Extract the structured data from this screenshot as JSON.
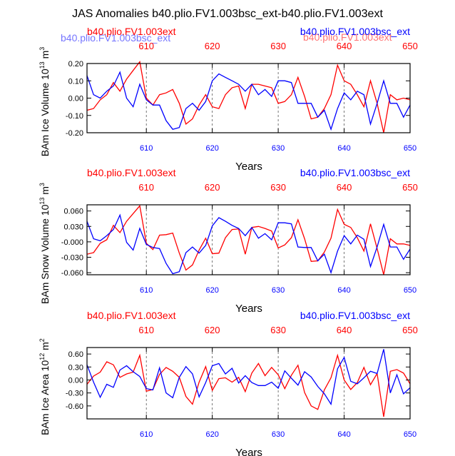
{
  "title": "JAS Anomalies b40.plio.FV1.003bsc_ext-b40.plio.FV1.003ext",
  "colors": {
    "red_series": "#ff0000",
    "blue_series": "#0000ff",
    "frame": "#000000",
    "refline": "#555555"
  },
  "chart_data": [
    {
      "type": "line",
      "ylabel_main": "BAm Ice Volume 10",
      "ylabel_exp": "13",
      "ylabel_unit": " m",
      "ylabel_unit_exp": "3",
      "xlabel": "Years",
      "legend_red": "b40.plio.FV1.003ext",
      "legend_blue": "b40.plio.FV1.003bsc_ext",
      "ghost_red": "b40.plio.FV1.003ext",
      "ghost_blue": "b40.plio.FV1.003bsc_ext",
      "xlim": [
        601,
        650
      ],
      "ylim": [
        -0.2,
        0.2
      ],
      "yticks": [
        0.2,
        0.1,
        0.0,
        -0.1,
        -0.2
      ],
      "ytick_labels": [
        "0.20",
        "0.10",
        "0.00",
        "-0.10",
        "-0.20"
      ],
      "xticks": [
        610,
        620,
        630,
        640,
        650
      ],
      "xtick_labels": [
        "610",
        "620",
        "630",
        "640",
        "650"
      ],
      "vlines": [
        610,
        620,
        630,
        640
      ],
      "x": [
        601,
        602,
        603,
        604,
        605,
        606,
        607,
        608,
        609,
        610,
        611,
        612,
        613,
        614,
        615,
        616,
        617,
        618,
        619,
        620,
        621,
        622,
        623,
        624,
        625,
        626,
        627,
        628,
        629,
        630,
        631,
        632,
        633,
        634,
        635,
        636,
        637,
        638,
        639,
        640,
        641,
        642,
        643,
        644,
        645,
        646,
        647,
        648,
        649,
        650
      ],
      "series": [
        {
          "name": "b40.plio.FV1.003ext",
          "color": "#ff0000",
          "values": [
            -0.07,
            -0.06,
            -0.01,
            0.02,
            0.09,
            0.04,
            0.11,
            0.16,
            0.21,
            0.0,
            -0.04,
            0.02,
            0.03,
            0.05,
            -0.03,
            -0.15,
            -0.12,
            -0.04,
            0.02,
            -0.05,
            -0.06,
            0.02,
            0.06,
            0.07,
            -0.06,
            0.08,
            0.08,
            0.07,
            0.06,
            -0.03,
            -0.02,
            0.02,
            0.12,
            0.01,
            -0.12,
            -0.11,
            -0.06,
            0.02,
            0.19,
            0.1,
            0.08,
            0.02,
            -0.05,
            0.1,
            -0.03,
            -0.2,
            0.02,
            -0.01,
            0.0,
            -0.01
          ]
        },
        {
          "name": "b40.plio.FV1.003bsc_ext",
          "color": "#0000ff",
          "values": [
            0.13,
            0.02,
            0.0,
            0.04,
            0.07,
            0.15,
            0.0,
            -0.05,
            0.08,
            -0.01,
            -0.04,
            -0.04,
            -0.13,
            -0.18,
            -0.17,
            -0.06,
            -0.03,
            -0.07,
            -0.02,
            0.1,
            0.14,
            0.12,
            0.1,
            0.08,
            0.04,
            0.08,
            0.02,
            0.05,
            0.01,
            0.1,
            0.1,
            0.09,
            -0.03,
            -0.03,
            -0.03,
            -0.11,
            -0.07,
            -0.18,
            -0.06,
            0.03,
            -0.01,
            0.04,
            0.02,
            -0.15,
            -0.03,
            0.1,
            -0.03,
            -0.03,
            -0.11,
            -0.04
          ]
        }
      ]
    },
    {
      "type": "line",
      "ylabel_main": "BAm Snow Volume 10",
      "ylabel_exp": "13",
      "ylabel_unit": " m",
      "ylabel_unit_exp": "3",
      "xlabel": "Years",
      "legend_red": "b40.plio.FV1.003ext",
      "legend_blue": "b40.plio.FV1.003bsc_ext",
      "xlim": [
        601,
        650
      ],
      "ylim": [
        -0.064,
        0.072
      ],
      "yticks": [
        0.06,
        0.03,
        0.0,
        -0.03,
        -0.06
      ],
      "ytick_labels": [
        "0.060",
        "0.030",
        "-0.000",
        "-0.030",
        "-0.060"
      ],
      "xticks": [
        610,
        620,
        630,
        640,
        650
      ],
      "xtick_labels": [
        "610",
        "620",
        "630",
        "640",
        "650"
      ],
      "vlines": [
        610,
        620,
        630,
        640
      ],
      "x": [
        601,
        602,
        603,
        604,
        605,
        606,
        607,
        608,
        609,
        610,
        611,
        612,
        613,
        614,
        615,
        616,
        617,
        618,
        619,
        620,
        621,
        622,
        623,
        624,
        625,
        626,
        627,
        628,
        629,
        630,
        631,
        632,
        633,
        634,
        635,
        636,
        637,
        638,
        639,
        640,
        641,
        642,
        643,
        644,
        645,
        646,
        647,
        648,
        649,
        650
      ],
      "series": [
        {
          "name": "b40.plio.FV1.003ext",
          "color": "#ff0000",
          "values": [
            -0.024,
            -0.021,
            -0.003,
            0.004,
            0.032,
            0.018,
            0.04,
            0.055,
            0.07,
            -0.003,
            -0.015,
            0.013,
            0.014,
            0.017,
            -0.022,
            -0.055,
            -0.045,
            -0.016,
            0.007,
            -0.023,
            -0.022,
            0.008,
            0.024,
            0.025,
            -0.024,
            0.028,
            0.03,
            0.026,
            0.021,
            -0.012,
            -0.006,
            0.008,
            0.043,
            0.006,
            -0.038,
            -0.037,
            -0.02,
            0.007,
            0.063,
            0.034,
            0.028,
            0.008,
            -0.018,
            0.035,
            -0.013,
            -0.064,
            0.006,
            -0.004,
            -0.004,
            -0.007
          ]
        },
        {
          "name": "b40.plio.FV1.003bsc_ext",
          "color": "#0000ff",
          "values": [
            0.04,
            0.006,
            0.002,
            0.012,
            0.024,
            0.052,
            -0.001,
            -0.016,
            0.026,
            -0.005,
            -0.011,
            -0.013,
            -0.042,
            -0.062,
            -0.058,
            -0.021,
            -0.01,
            -0.022,
            -0.007,
            0.031,
            0.047,
            0.04,
            0.032,
            0.026,
            0.012,
            0.028,
            0.007,
            0.016,
            0.004,
            0.037,
            0.037,
            0.035,
            -0.01,
            -0.011,
            -0.011,
            -0.037,
            -0.024,
            -0.06,
            -0.018,
            0.012,
            -0.004,
            0.013,
            0.005,
            -0.048,
            -0.01,
            0.034,
            -0.01,
            -0.01,
            -0.034,
            -0.014
          ]
        }
      ]
    },
    {
      "type": "line",
      "ylabel_main": "BAm Ice Area 10",
      "ylabel_exp": "12",
      "ylabel_unit": " m",
      "ylabel_unit_exp": "2",
      "xlabel": "Years",
      "legend_red": "b40.plio.FV1.003ext",
      "legend_blue": "b40.plio.FV1.003bsc_ext",
      "xlim": [
        601,
        650
      ],
      "ylim": [
        -0.9,
        0.75
      ],
      "yticks": [
        0.6,
        0.3,
        0.0,
        -0.3,
        -0.6
      ],
      "ytick_labels": [
        "0.60",
        "0.30",
        "0.00",
        "-0.30",
        "-0.60"
      ],
      "xticks": [
        610,
        620,
        630,
        640,
        650
      ],
      "xtick_labels": [
        "610",
        "620",
        "630",
        "640",
        "650"
      ],
      "vlines": [
        610,
        620,
        630,
        640
      ],
      "x": [
        601,
        602,
        603,
        604,
        605,
        606,
        607,
        608,
        609,
        610,
        611,
        612,
        613,
        614,
        615,
        616,
        617,
        618,
        619,
        620,
        621,
        622,
        623,
        624,
        625,
        626,
        627,
        628,
        629,
        630,
        631,
        632,
        633,
        634,
        635,
        636,
        637,
        638,
        639,
        640,
        641,
        642,
        643,
        644,
        645,
        646,
        647,
        648,
        649,
        650
      ],
      "series": [
        {
          "name": "b40.plio.FV1.003ext",
          "color": "#ff0000",
          "values": [
            -0.1,
            0.09,
            0.18,
            0.42,
            0.35,
            0.06,
            0.14,
            0.18,
            0.57,
            -0.26,
            -0.22,
            0.13,
            0.29,
            0.2,
            0.06,
            -0.38,
            -0.56,
            -0.05,
            0.31,
            -0.24,
            0.03,
            0.05,
            -0.05,
            0.06,
            -0.27,
            0.16,
            0.38,
            0.1,
            0.29,
            0.12,
            -0.2,
            0.11,
            0.34,
            -0.29,
            -0.6,
            -0.68,
            -0.23,
            0.05,
            0.57,
            0.0,
            -0.22,
            -0.06,
            0.29,
            -0.11,
            0.15,
            -0.85,
            0.2,
            0.24,
            0.16,
            -0.09
          ]
        },
        {
          "name": "b40.plio.FV1.003bsc_ext",
          "color": "#0000ff",
          "values": [
            0.35,
            -0.05,
            -0.4,
            -0.1,
            -0.17,
            0.23,
            0.33,
            0.19,
            0.08,
            -0.2,
            -0.23,
            0.28,
            -0.3,
            -0.41,
            0.06,
            0.31,
            0.14,
            -0.39,
            -0.06,
            0.33,
            0.38,
            0.14,
            0.27,
            -0.07,
            0.1,
            -0.06,
            -0.13,
            -0.13,
            -0.05,
            -0.19,
            0.21,
            0.04,
            -0.12,
            0.19,
            0.07,
            -0.15,
            -0.32,
            -0.56,
            0.26,
            0.52,
            -0.03,
            -0.09,
            0.05,
            0.2,
            0.15,
            0.71,
            -0.3,
            0.12,
            -0.32,
            -0.18
          ]
        }
      ]
    }
  ]
}
